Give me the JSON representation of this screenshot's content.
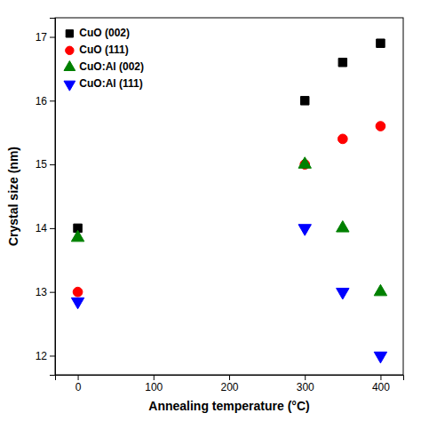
{
  "chart_data": {
    "type": "scatter",
    "xlabel": "Annealing temperature (°C)",
    "ylabel": "Crystal size (nm)",
    "x": [
      0,
      300,
      350,
      400
    ],
    "series": [
      {
        "name": "CuO (002)",
        "color": "black",
        "marker": "square",
        "values": [
          14.0,
          16.0,
          16.6,
          16.9
        ]
      },
      {
        "name": "CuO (111)",
        "color": "red",
        "marker": "circle",
        "values": [
          13.0,
          15.0,
          15.4,
          15.6
        ]
      },
      {
        "name": "CuO:Al (002)",
        "color": "green",
        "marker": "triangle-up",
        "values": [
          13.85,
          15.0,
          14.0,
          13.0
        ]
      },
      {
        "name": "CuO:Al (111)",
        "color": "blue",
        "marker": "triangle-down",
        "values": [
          12.85,
          14.0,
          13.0,
          12.0
        ]
      }
    ],
    "xlim": [
      -30,
      430
    ],
    "ylim": [
      11.7,
      17.3
    ],
    "xticks": [
      0,
      100,
      200,
      300,
      400
    ],
    "yticks": [
      12,
      13,
      14,
      15,
      16,
      17
    ],
    "grid": false,
    "legend": "upper left"
  }
}
